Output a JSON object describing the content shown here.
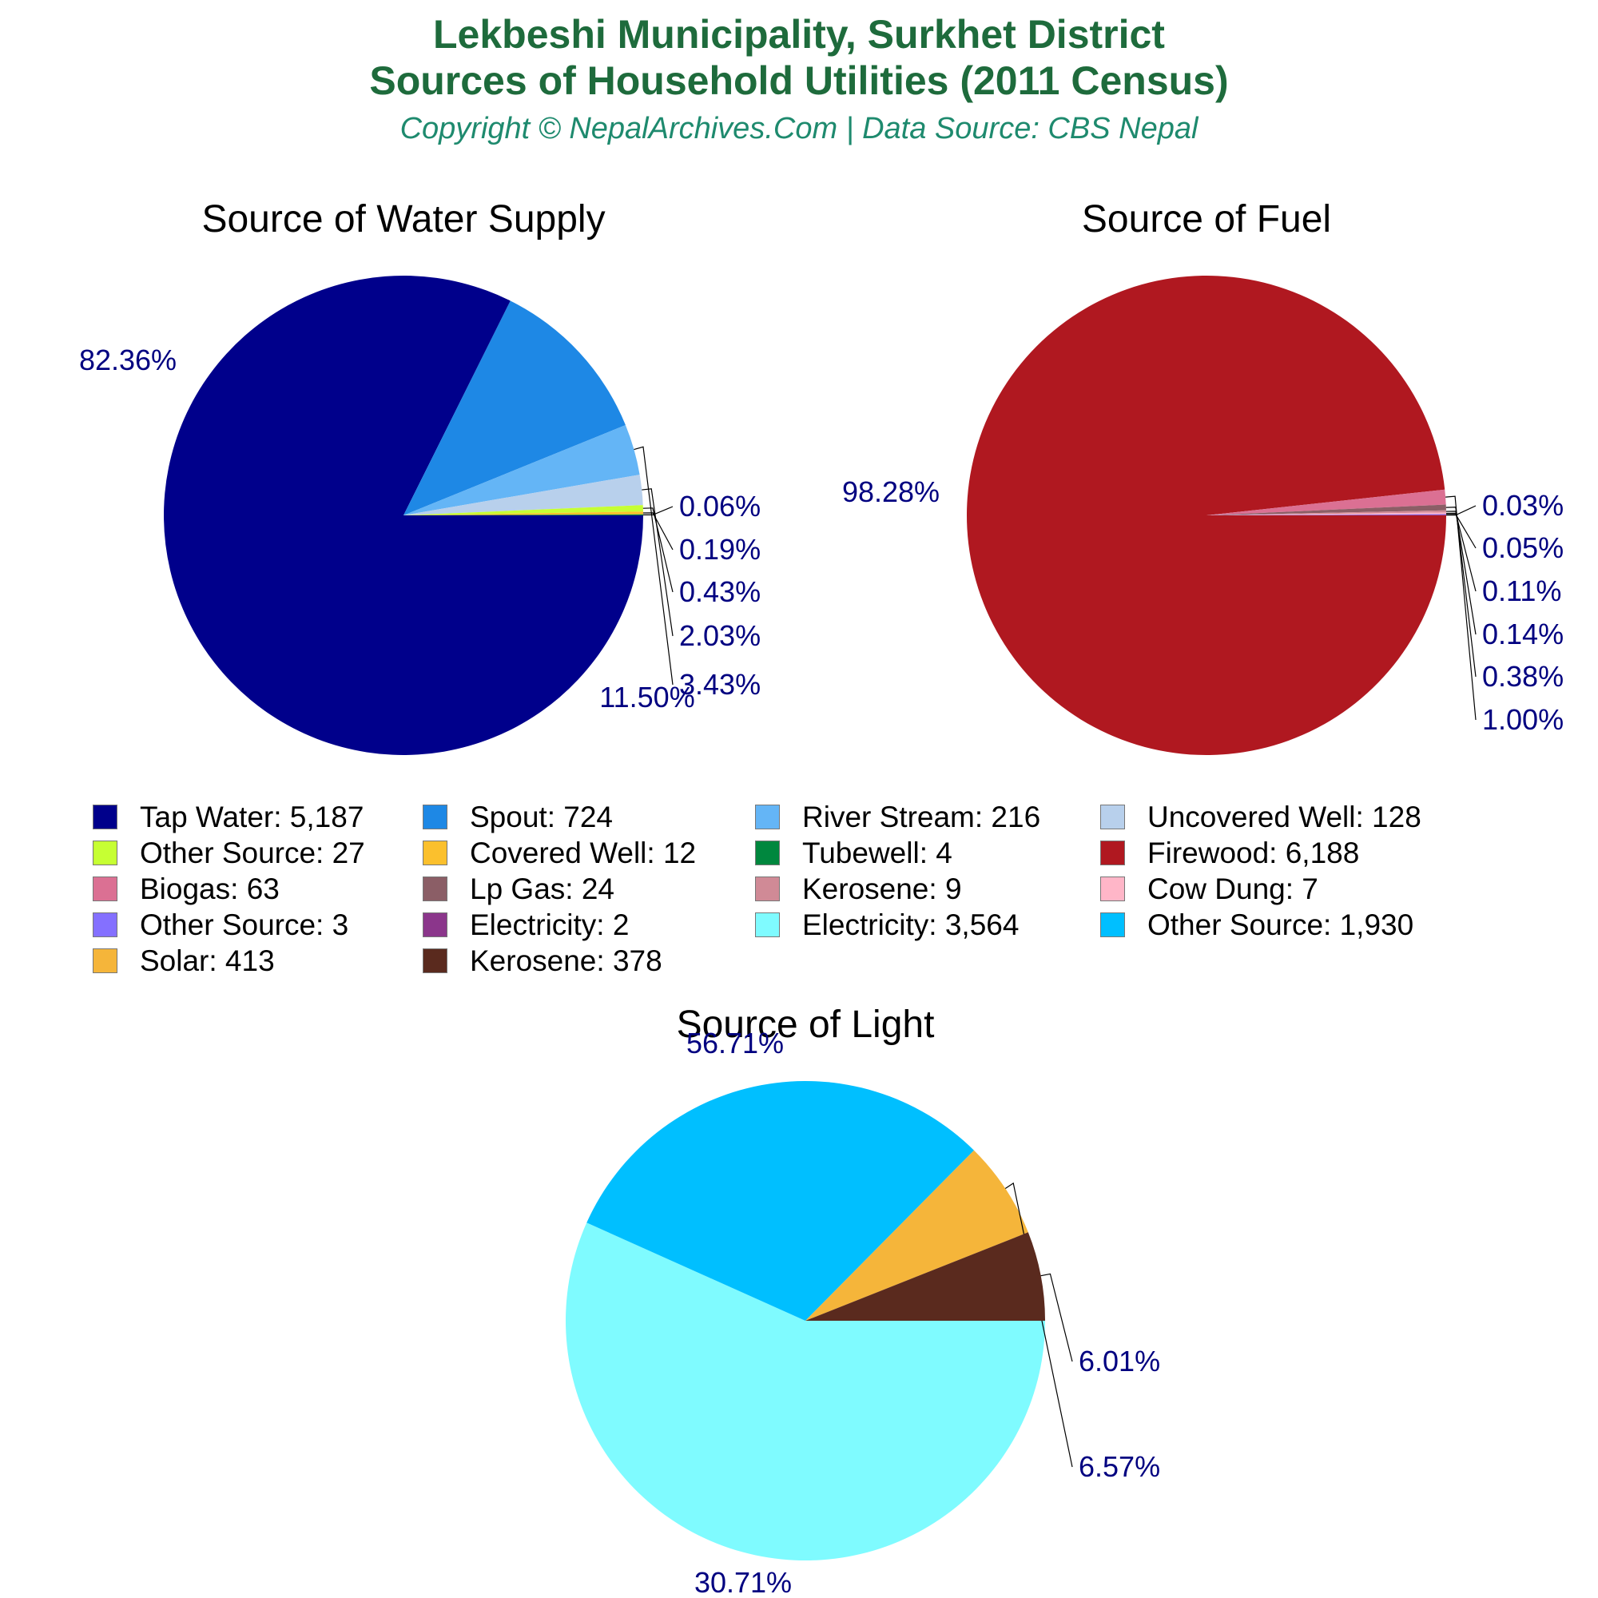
{
  "header": {
    "title_line1": "Lekbeshi Municipality, Surkhet District",
    "title_line2": "Sources of Household Utilities (2011 Census)",
    "subtitle": "Copyright © NepalArchives.Com | Data Source: CBS Nepal"
  },
  "colors": {
    "title": "#1e6b3c",
    "subtitle": "#1e8a6e",
    "pct_labels": "#000080"
  },
  "chart_data": [
    {
      "type": "pie",
      "title": "Source of Water Supply",
      "labels": [
        "Tap Water",
        "Spout",
        "River Stream",
        "Uncovered Well",
        "Other Source",
        "Covered Well",
        "Tubewell"
      ],
      "values": [
        5187,
        724,
        216,
        128,
        27,
        12,
        4
      ],
      "percent_labels": [
        "82.36%",
        "11.50%",
        "3.43%",
        "2.03%",
        "0.43%",
        "0.19%",
        "0.06%"
      ],
      "colors": [
        "#00008b",
        "#1e88e5",
        "#64b5f6",
        "#b8d0ec",
        "#c6ff33",
        "#fbc02d",
        "#00873e"
      ]
    },
    {
      "type": "pie",
      "title": "Source of Fuel",
      "labels": [
        "Firewood",
        "Biogas",
        "Lp Gas",
        "Kerosene",
        "Cow Dung",
        "Other Source",
        "Electricity"
      ],
      "values": [
        6188,
        63,
        24,
        9,
        7,
        3,
        2
      ],
      "percent_labels": [
        "98.28%",
        "1.00%",
        "0.38%",
        "0.14%",
        "0.11%",
        "0.05%",
        "0.03%"
      ],
      "colors": [
        "#b01820",
        "#db7093",
        "#8b5e66",
        "#d08a96",
        "#ffb6c8",
        "#8470ff",
        "#8b368b"
      ]
    },
    {
      "type": "pie",
      "title": "Source of Light",
      "labels": [
        "Electricity",
        "Other Source",
        "Solar",
        "Kerosene"
      ],
      "values": [
        3564,
        1930,
        413,
        378
      ],
      "percent_labels": [
        "56.71%",
        "30.71%",
        "6.57%",
        "6.01%"
      ],
      "colors": [
        "#7ffbff",
        "#00bfff",
        "#f5b53a",
        "#5a2a1e"
      ]
    }
  ],
  "legend": [
    {
      "label": "Tap Water: 5,187",
      "color": "#00008b"
    },
    {
      "label": "Spout: 724",
      "color": "#1e88e5"
    },
    {
      "label": "River Stream: 216",
      "color": "#64b5f6"
    },
    {
      "label": "Uncovered Well: 128",
      "color": "#b8d0ec"
    },
    {
      "label": "Other Source: 27",
      "color": "#c6ff33"
    },
    {
      "label": "Covered Well: 12",
      "color": "#fbc02d"
    },
    {
      "label": "Tubewell: 4",
      "color": "#00873e"
    },
    {
      "label": "Firewood: 6,188",
      "color": "#b01820"
    },
    {
      "label": "Biogas: 63",
      "color": "#db7093"
    },
    {
      "label": "Lp Gas: 24",
      "color": "#8b5e66"
    },
    {
      "label": "Kerosene: 9",
      "color": "#d08a96"
    },
    {
      "label": "Cow Dung: 7",
      "color": "#ffb6c8"
    },
    {
      "label": "Other Source: 3",
      "color": "#8470ff"
    },
    {
      "label": "Electricity: 2",
      "color": "#8b368b"
    },
    {
      "label": "Electricity: 3,564",
      "color": "#7ffbff"
    },
    {
      "label": "Other Source: 1,930",
      "color": "#00bfff"
    },
    {
      "label": "Solar: 413",
      "color": "#f5b53a"
    },
    {
      "label": "Kerosene: 378",
      "color": "#5a2a1e"
    }
  ]
}
